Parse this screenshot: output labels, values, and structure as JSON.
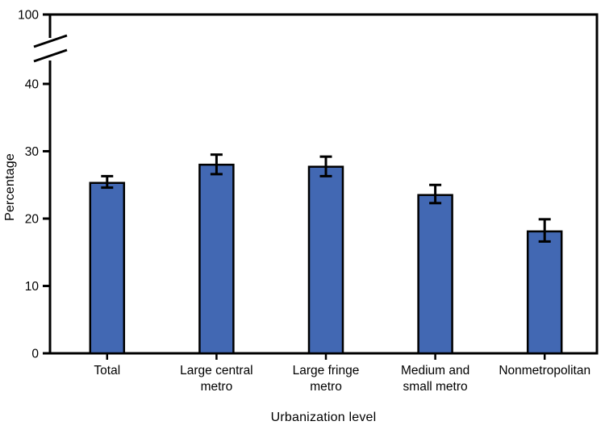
{
  "chart_data": {
    "type": "bar",
    "title": "",
    "xlabel": "Urbanization level",
    "ylabel": "Percentage",
    "categories": [
      "Total",
      "Large central metro",
      "Large fringe metro",
      "Medium and small metro",
      "Nonmetropolitan"
    ],
    "category_label_lines": [
      [
        "Total"
      ],
      [
        "Large central",
        "metro"
      ],
      [
        "Large fringe",
        "metro"
      ],
      [
        "Medium and",
        "small metro"
      ],
      [
        "Nonmetropolitan"
      ]
    ],
    "values": [
      25.3,
      28.0,
      27.7,
      23.5,
      18.1
    ],
    "error_low": [
      24.6,
      26.6,
      26.3,
      22.3,
      16.6
    ],
    "error_high": [
      26.3,
      29.5,
      29.2,
      25.0,
      19.9
    ],
    "y_ticks_lower": [
      0,
      10,
      20,
      30,
      40
    ],
    "y_tick_top": 100,
    "axis_break": true,
    "grid": false,
    "legend_position": "none",
    "bar_color": "#4268B3",
    "bar_outline_color": "#000000",
    "error_bar_color": "#000000",
    "axis_color": "#000000",
    "background_color": "#FFFFFF"
  }
}
